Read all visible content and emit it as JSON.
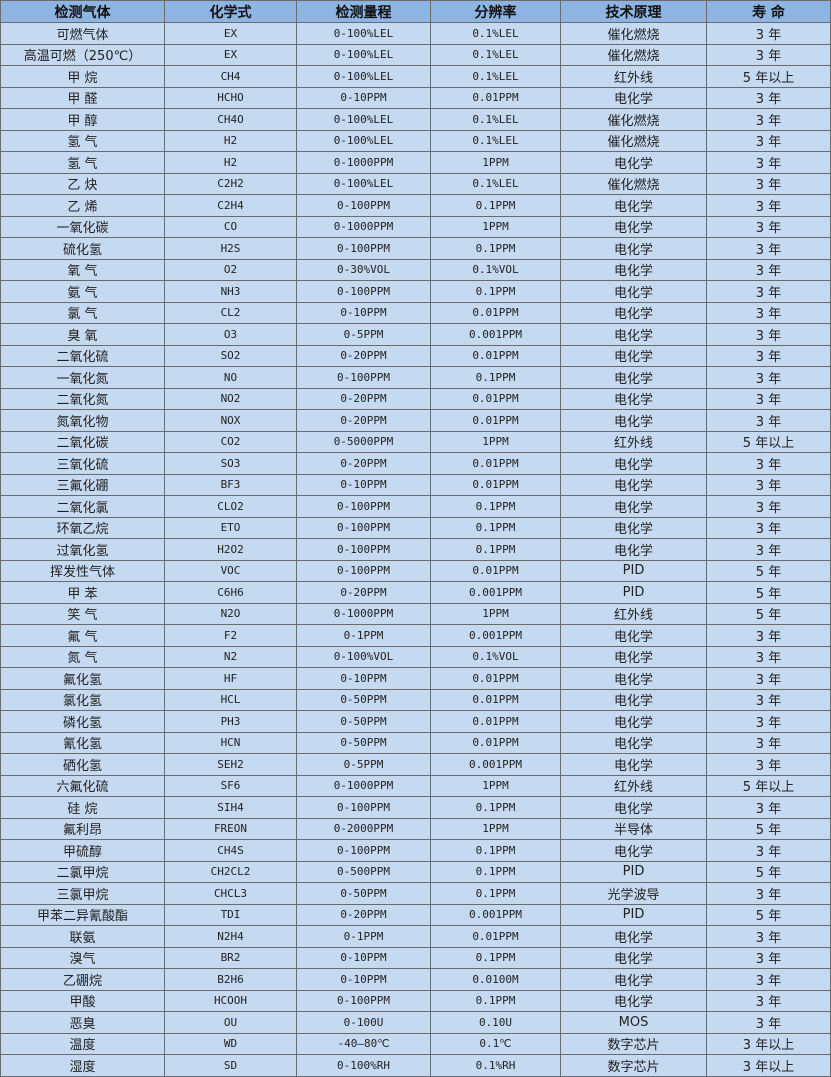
{
  "headers": [
    "检测气体",
    "化学式",
    "检测量程",
    "分辨率",
    "技术原理",
    "寿 命"
  ],
  "rows": [
    [
      "可燃气体",
      "EX",
      "0-100%LEL",
      "0.1%LEL",
      "催化燃烧",
      "3 年"
    ],
    [
      "高温可燃（250℃）",
      "EX",
      "0-100%LEL",
      "0.1%LEL",
      "催化燃烧",
      "3 年"
    ],
    [
      "甲 烷",
      "CH4",
      "0-100%LEL",
      "0.1%LEL",
      "红外线",
      "5 年以上"
    ],
    [
      "甲 醛",
      "HCHO",
      "0-10PPM",
      "0.01PPM",
      "电化学",
      "3 年"
    ],
    [
      "甲 醇",
      "CH4O",
      "0-100%LEL",
      "0.1%LEL",
      "催化燃烧",
      "3 年"
    ],
    [
      "氢 气",
      "H2",
      "0-100%LEL",
      "0.1%LEL",
      "催化燃烧",
      "3 年"
    ],
    [
      "氢 气",
      "H2",
      "0-1000PPM",
      "1PPM",
      "电化学",
      "3 年"
    ],
    [
      "乙 炔",
      "C2H2",
      "0-100%LEL",
      "0.1%LEL",
      "催化燃烧",
      "3 年"
    ],
    [
      "乙 烯",
      "C2H4",
      "0-100PPM",
      "0.1PPM",
      "电化学",
      "3 年"
    ],
    [
      "一氧化碳",
      "CO",
      "0-1000PPM",
      "1PPM",
      "电化学",
      "3 年"
    ],
    [
      "硫化氢",
      "H2S",
      "0-100PPM",
      "0.1PPM",
      "电化学",
      "3 年"
    ],
    [
      "氧 气",
      "O2",
      "0-30%VOL",
      "0.1%VOL",
      "电化学",
      "3 年"
    ],
    [
      "氨 气",
      "NH3",
      "0-100PPM",
      "0.1PPM",
      "电化学",
      "3 年"
    ],
    [
      "氯 气",
      "CL2",
      "0-10PPM",
      "0.01PPM",
      "电化学",
      "3 年"
    ],
    [
      "臭 氧",
      "O3",
      "0-5PPM",
      "0.001PPM",
      "电化学",
      "3 年"
    ],
    [
      "二氧化硫",
      "SO2",
      "0-20PPM",
      "0.01PPM",
      "电化学",
      "3 年"
    ],
    [
      "一氧化氮",
      "NO",
      "0-100PPM",
      "0.1PPM",
      "电化学",
      "3 年"
    ],
    [
      "二氧化氮",
      "NO2",
      "0-20PPM",
      "0.01PPM",
      "电化学",
      "3 年"
    ],
    [
      "氮氧化物",
      "NOX",
      "0-20PPM",
      "0.01PPM",
      "电化学",
      "3 年"
    ],
    [
      "二氧化碳",
      "CO2",
      "0-5000PPM",
      "1PPM",
      "红外线",
      "5 年以上"
    ],
    [
      "三氧化硫",
      "SO3",
      "0-20PPM",
      "0.01PPM",
      "电化学",
      "3 年"
    ],
    [
      "三氟化硼",
      "BF3",
      "0-10PPM",
      "0.01PPM",
      "电化学",
      "3 年"
    ],
    [
      "二氧化氯",
      "CLO2",
      "0-100PPM",
      "0.1PPM",
      "电化学",
      "3 年"
    ],
    [
      "环氧乙烷",
      "ETO",
      "0-100PPM",
      "0.1PPM",
      "电化学",
      "3 年"
    ],
    [
      "过氧化氢",
      "H2O2",
      "0-100PPM",
      "0.1PPM",
      "电化学",
      "3 年"
    ],
    [
      "挥发性气体",
      "VOC",
      "0-100PPM",
      "0.01PPM",
      "PID",
      "5 年"
    ],
    [
      "甲 苯",
      "C6H6",
      "0-20PPM",
      "0.001PPM",
      "PID",
      "5 年"
    ],
    [
      "笑 气",
      "N2O",
      "0-1000PPM",
      "1PPM",
      "红外线",
      "5 年"
    ],
    [
      "氟 气",
      "F2",
      "0-1PPM",
      "0.001PPM",
      "电化学",
      "3 年"
    ],
    [
      "氮 气",
      "N2",
      "0-100%VOL",
      "0.1%VOL",
      "电化学",
      "3 年"
    ],
    [
      "氟化氢",
      "HF",
      "0-10PPM",
      "0.01PPM",
      "电化学",
      "3 年"
    ],
    [
      "氯化氢",
      "HCL",
      "0-50PPM",
      "0.01PPM",
      "电化学",
      "3 年"
    ],
    [
      "磷化氢",
      "PH3",
      "0-50PPM",
      "0.01PPM",
      "电化学",
      "3 年"
    ],
    [
      "氰化氢",
      "HCN",
      "0-50PPM",
      "0.01PPM",
      "电化学",
      "3 年"
    ],
    [
      "硒化氢",
      "SEH2",
      "0-5PPM",
      "0.001PPM",
      "电化学",
      "3 年"
    ],
    [
      "六氟化硫",
      "SF6",
      "0-1000PPM",
      "1PPM",
      "红外线",
      "5 年以上"
    ],
    [
      "硅 烷",
      "SIH4",
      "0-100PPM",
      "0.1PPM",
      "电化学",
      "3 年"
    ],
    [
      "氟利昂",
      "FREON",
      "0-2000PPM",
      "1PPM",
      "半导体",
      "5 年"
    ],
    [
      "甲硫醇",
      "CH4S",
      "0-100PPM",
      "0.1PPM",
      "电化学",
      "3 年"
    ],
    [
      "二氯甲烷",
      "CH2CL2",
      "0-500PPM",
      "0.1PPM",
      "PID",
      "5 年"
    ],
    [
      "三氯甲烷",
      "CHCL3",
      "0-50PPM",
      "0.1PPM",
      "光学波导",
      "3 年"
    ],
    [
      "甲苯二异氰酸酯",
      "TDI",
      "0-20PPM",
      "0.001PPM",
      "PID",
      "5 年"
    ],
    [
      "联氨",
      "N2H4",
      "0-1PPM",
      "0.01PPM",
      "电化学",
      "3 年"
    ],
    [
      "溴气",
      "BR2",
      "0-10PPM",
      "0.1PPM",
      "电化学",
      "3 年"
    ],
    [
      "乙硼烷",
      "B2H6",
      "0-10PPM",
      "0.0100M",
      "电化学",
      "3 年"
    ],
    [
      "甲酸",
      "HCOOH",
      "0-100PPM",
      "0.1PPM",
      "电化学",
      "3 年"
    ],
    [
      "恶臭",
      "OU",
      "0-100U",
      "0.10U",
      "MOS",
      "3 年"
    ],
    [
      "温度",
      "WD",
      "-40—80℃",
      "0.1℃",
      "数字芯片",
      "3 年以上"
    ],
    [
      "湿度",
      "SD",
      "0-100%RH",
      "0.1%RH",
      "数字芯片",
      "3 年以上"
    ]
  ]
}
